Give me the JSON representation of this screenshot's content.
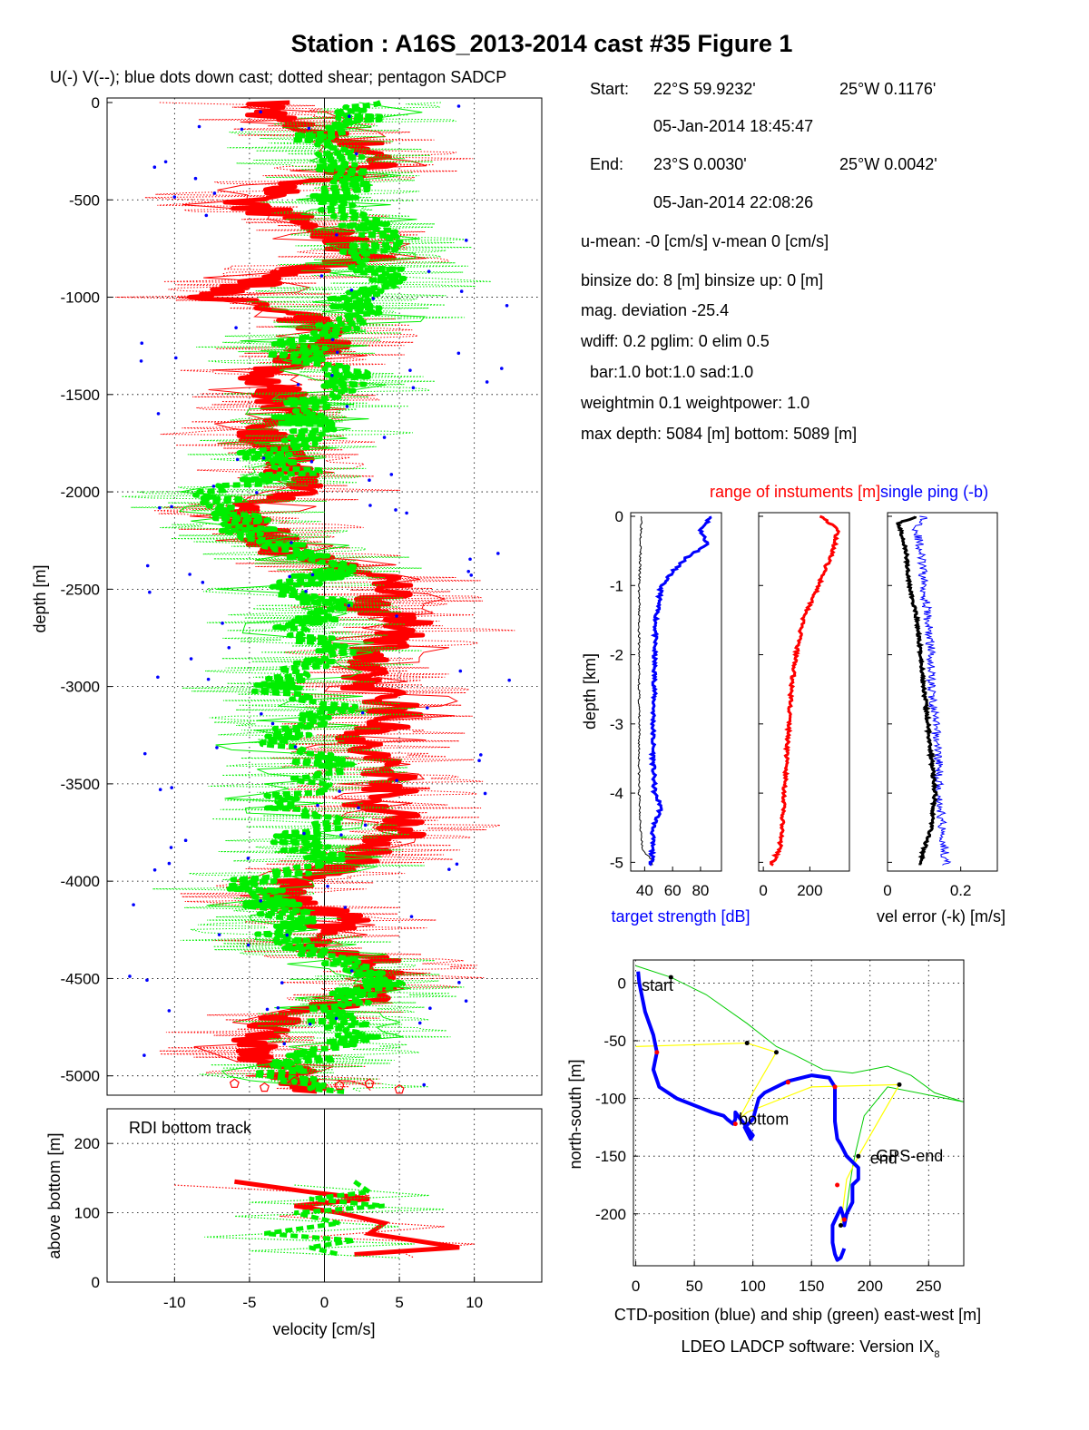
{
  "figure": {
    "title": "Station : A16S_2013-2014 cast #35  Figure 1",
    "footer": "LDEO LADCP software: Version IX",
    "footer_sub": "8"
  },
  "colors": {
    "u_profile": "#ff0000",
    "v_profile": "#00ee00",
    "down_cast_dots": "#0000ff",
    "target_strength": "#0000ff",
    "single_ping": "#0000ff",
    "range": "#ff0000",
    "ctd_position": "#0000ff",
    "ship_position": "#00cc00",
    "gps_link": "#ffff00",
    "reference": "#000000"
  },
  "info": {
    "start_label": "Start:",
    "start_lat": "22°S  59.9232'",
    "start_lon": "25°W  0.1176'",
    "start_time": "05-Jan-2014 18:45:47",
    "end_label": "End:",
    "end_lat": "23°S  0.0030'",
    "end_lon": "25°W  0.0042'",
    "end_time": "05-Jan-2014 22:08:26",
    "means": "u-mean:  -0 [cm/s]    v-mean   0 [cm/s]",
    "binsize": "binsize do: 8 [m]  binsize up:  0 [m]",
    "magdev": "mag. deviation -25.4",
    "wdiff": "wdiff: 0.2  pglim: 0  elim 0.5",
    "bar": "bar:1.0 bot:1.0 sad:1.0",
    "weight": "weightmin 0.1  weightpower: 1.0",
    "depth": "max depth: 5084 [m]   bottom: 5089 [m]"
  },
  "chart_data": [
    {
      "id": "velocity-profile",
      "type": "line",
      "title": "U(-) V(--); blue dots down cast; dotted shear; pentagon SADCP",
      "ylabel": "depth [m]",
      "xlim": [
        -14.5,
        14.5
      ],
      "ylim": [
        -5090,
        0
      ],
      "yticks": [
        0,
        -500,
        -1000,
        -1500,
        -2000,
        -2500,
        -3000,
        -3500,
        -4000,
        -4500,
        -5000
      ],
      "grid": true,
      "series": [
        {
          "name": "U",
          "depth": [
            0,
            -100,
            -200,
            -300,
            -400,
            -500,
            -600,
            -700,
            -800,
            -900,
            -1000,
            -1100,
            -1200,
            -1300,
            -1400,
            -1500,
            -1600,
            -1700,
            -1800,
            -1900,
            -2000,
            -2100,
            -2200,
            -2300,
            -2400,
            -2500,
            -2600,
            -2700,
            -2800,
            -2900,
            -3000,
            -3100,
            -3200,
            -3300,
            -3400,
            -3500,
            -3600,
            -3700,
            -3800,
            -3900,
            -4000,
            -4100,
            -4200,
            -4300,
            -4400,
            -4500,
            -4600,
            -4700,
            -4800,
            -4900,
            -5000,
            -5080
          ],
          "values": [
            -4,
            -3,
            2,
            4,
            0,
            -6,
            -2,
            1,
            3,
            -4,
            -7,
            -2,
            1,
            -1,
            -4,
            -3,
            -2,
            -4,
            -3,
            -2,
            -1,
            -6,
            -4,
            -3,
            2,
            5,
            3,
            6,
            4,
            2,
            3,
            5,
            4,
            2,
            4,
            5,
            3,
            6,
            4,
            2,
            -2,
            -3,
            2,
            -2,
            3,
            4,
            3,
            -3,
            -5,
            -4,
            -2,
            -1
          ]
        },
        {
          "name": "V",
          "depth": [
            0,
            -100,
            -200,
            -300,
            -400,
            -500,
            -600,
            -700,
            -800,
            -900,
            -1000,
            -1100,
            -1200,
            -1300,
            -1400,
            -1500,
            -1600,
            -1700,
            -1800,
            -1900,
            -2000,
            -2100,
            -2200,
            -2300,
            -2400,
            -2500,
            -2600,
            -2700,
            -2800,
            -2900,
            -3000,
            -3100,
            -3200,
            -3300,
            -3400,
            -3500,
            -3600,
            -3700,
            -3800,
            -3900,
            -4000,
            -4100,
            -4200,
            -4300,
            -4400,
            -4500,
            -4600,
            -4700,
            -4800,
            -4900,
            -5000,
            -5080
          ],
          "values": [
            3,
            2,
            -1,
            1,
            2,
            0,
            2,
            4,
            2,
            5,
            1,
            3,
            -1,
            -2,
            2,
            0,
            -2,
            0,
            -4,
            -2,
            -7,
            -6,
            -5,
            -2,
            1,
            -3,
            1,
            -2,
            1,
            -1,
            -4,
            1,
            -2,
            -3,
            0,
            -1,
            -3,
            0,
            -2,
            1,
            -5,
            -4,
            -2,
            -3,
            1,
            4,
            2,
            0,
            3,
            -1,
            -3,
            2
          ]
        }
      ]
    },
    {
      "id": "bottom-track",
      "type": "line",
      "title": "RDI bottom track",
      "xlabel": "velocity [cm/s]",
      "ylabel": "above bottom [m]",
      "xlim": [
        -14.5,
        14.5
      ],
      "ylim": [
        0,
        250
      ],
      "xticks": [
        -10,
        -5,
        0,
        5,
        10
      ],
      "yticks": [
        0,
        100,
        200
      ],
      "grid": true,
      "series": [
        {
          "name": "U",
          "height": [
            145,
            130,
            120,
            110,
            100,
            85,
            70,
            60,
            50,
            40
          ],
          "values": [
            -6,
            -1,
            3,
            -2,
            1,
            4,
            3,
            6,
            9,
            2
          ]
        },
        {
          "name": "V",
          "height": [
            145,
            130,
            120,
            110,
            100,
            85,
            70,
            60,
            50,
            40
          ],
          "values": [
            2,
            3,
            -1,
            4,
            -2,
            1,
            -4,
            2,
            -1,
            1
          ]
        }
      ]
    },
    {
      "id": "target-strength",
      "type": "line",
      "title": "",
      "xlabel": "target strength [dB]",
      "ylabel": "depth [km]",
      "xlim": [
        30,
        95
      ],
      "ylim": [
        -5.1,
        0
      ],
      "xticks": [
        40,
        60,
        80
      ],
      "yticks": [
        0,
        -1,
        -2,
        -3,
        -4,
        -5
      ],
      "series": [
        {
          "name": "target strength",
          "depth": [
            0,
            -0.2,
            -0.4,
            -0.5,
            -0.6,
            -0.8,
            -1.0,
            -1.5,
            -2.0,
            -2.5,
            -3.0,
            -3.5,
            -4.0,
            -4.2,
            -4.5,
            -5.0
          ],
          "values": [
            88,
            80,
            85,
            78,
            70,
            60,
            52,
            48,
            47,
            47,
            46,
            46,
            47,
            52,
            46,
            45
          ]
        },
        {
          "name": "reference",
          "depth": [
            0,
            -0.5,
            -1.0,
            -2.0,
            -3.0,
            -4.0,
            -4.8,
            -5.0
          ],
          "values": [
            38,
            37,
            36,
            36,
            36,
            36,
            38,
            46
          ]
        }
      ]
    },
    {
      "id": "range-of-instruments",
      "type": "line",
      "title": "range of instuments [m]",
      "xlabel": "",
      "xlim": [
        -20,
        370
      ],
      "ylim": [
        -5.1,
        0
      ],
      "xticks": [
        0,
        200
      ],
      "series": [
        {
          "name": "range",
          "depth": [
            0,
            -0.2,
            -0.5,
            -0.8,
            -1.0,
            -1.5,
            -2.0,
            -2.5,
            -3.0,
            -3.5,
            -4.0,
            -4.5,
            -4.8,
            -5.0
          ],
          "values": [
            250,
            320,
            300,
            260,
            240,
            170,
            140,
            120,
            110,
            100,
            90,
            80,
            70,
            40
          ]
        }
      ]
    },
    {
      "id": "vel-error",
      "type": "line",
      "title": "single ping (-b)",
      "xlabel": "vel error (-k) [m/s]",
      "xlim": [
        0,
        0.3
      ],
      "ylim": [
        -5.1,
        0
      ],
      "xticks": [
        0,
        0.2
      ],
      "series": [
        {
          "name": "vel error",
          "depth": [
            0,
            -0.1,
            -0.3,
            -0.5,
            -1.0,
            -1.5,
            -2.0,
            -2.5,
            -3.0,
            -3.5,
            -4.0,
            -4.5,
            -4.8,
            -5.0
          ],
          "values": [
            0.08,
            0.03,
            0.04,
            0.05,
            0.06,
            0.08,
            0.09,
            0.1,
            0.11,
            0.12,
            0.13,
            0.12,
            0.1,
            0.09
          ]
        },
        {
          "name": "single ping",
          "depth": [
            0,
            -0.2,
            -0.5,
            -1.0,
            -1.5,
            -2.0,
            -2.5,
            -3.0,
            -3.5,
            -4.0,
            -4.5,
            -5.0
          ],
          "values": [
            0.1,
            0.08,
            0.09,
            0.1,
            0.11,
            0.12,
            0.12,
            0.13,
            0.14,
            0.14,
            0.15,
            0.16
          ]
        }
      ]
    },
    {
      "id": "positions",
      "type": "line",
      "title": "",
      "xlabel": "CTD-position (blue) and ship (green) east-west [m]",
      "ylabel": "north-south [m]",
      "xlim": [
        -2,
        280
      ],
      "ylim": [
        -245,
        20
      ],
      "xticks": [
        0,
        50,
        100,
        150,
        200,
        250
      ],
      "yticks": [
        0,
        -50,
        -100,
        -150,
        -200
      ],
      "grid": true,
      "annotations": [
        {
          "text": "start",
          "x": 5,
          "y": -2
        },
        {
          "text": "bottom",
          "x": 88,
          "y": -118
        },
        {
          "text": "end",
          "x": 200,
          "y": -152
        },
        {
          "text": "GPS-end",
          "x": 205,
          "y": -150
        }
      ],
      "series": [
        {
          "name": "CTD-position",
          "x": [
            2,
            3,
            5,
            8,
            15,
            18,
            15,
            20,
            35,
            55,
            65,
            75,
            78,
            83,
            85,
            85,
            100,
            98,
            93,
            100,
            105,
            110,
            130,
            150,
            165,
            170,
            170,
            172,
            175,
            180,
            190,
            190,
            185,
            185,
            180,
            178,
            178,
            175,
            168,
            168,
            170,
            172,
            175,
            178
          ],
          "y": [
            10,
            0,
            -10,
            -25,
            -45,
            -60,
            -75,
            -90,
            -100,
            -108,
            -112,
            -115,
            -118,
            -122,
            -118,
            -112,
            -132,
            -135,
            -125,
            -118,
            -100,
            -95,
            -85,
            -80,
            -82,
            -90,
            -120,
            -135,
            -140,
            -150,
            -160,
            -170,
            -175,
            -190,
            -200,
            -210,
            -205,
            -195,
            -210,
            -225,
            -235,
            -240,
            -238,
            -230
          ]
        },
        {
          "name": "ship",
          "x": [
            0,
            30,
            60,
            95,
            120,
            135,
            160,
            185,
            215,
            235,
            255,
            280,
            215,
            195,
            188,
            185,
            182,
            178
          ],
          "y": [
            15,
            5,
            -10,
            -35,
            -55,
            -62,
            -75,
            -78,
            -72,
            -80,
            -95,
            -103,
            -90,
            -115,
            -145,
            -160,
            -180,
            -210
          ]
        },
        {
          "name": "GPS link",
          "x": [
            0,
            95,
            120,
            100,
            88,
            95,
            150,
            225,
            190,
            180,
            175
          ],
          "y": [
            -55,
            -52,
            -60,
            -95,
            -118,
            -112,
            -90,
            -88,
            -150,
            -170,
            -210
          ]
        }
      ]
    }
  ]
}
